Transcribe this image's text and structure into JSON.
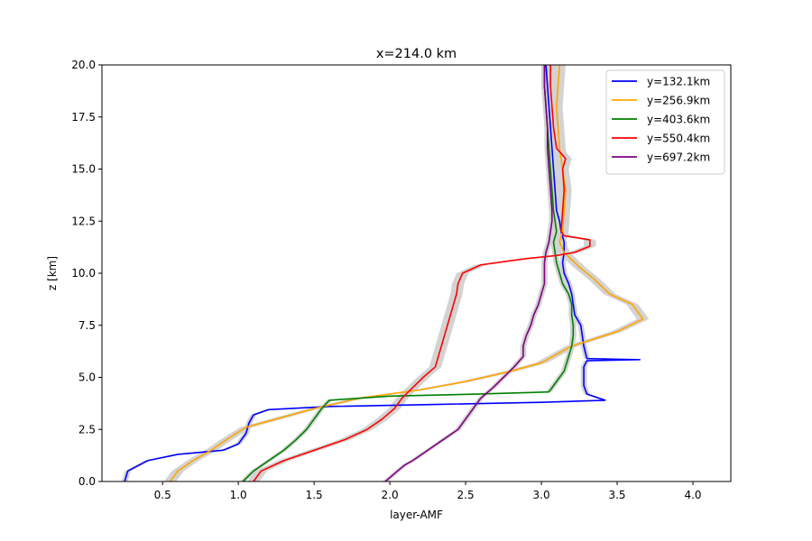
{
  "chart_data": {
    "type": "line",
    "title": "x=214.0 km",
    "xlabel": "layer-AMF",
    "ylabel": "z [km]",
    "xlim": [
      0.1,
      4.25
    ],
    "ylim": [
      0,
      20
    ],
    "xticks": [
      0.5,
      1.0,
      1.5,
      2.0,
      2.5,
      3.0,
      3.5,
      4.0
    ],
    "yticks": [
      0.0,
      2.5,
      5.0,
      7.5,
      10.0,
      12.5,
      15.0,
      17.5,
      20.0
    ],
    "xtick_labels": [
      "0.5",
      "1.0",
      "1.5",
      "2.0",
      "2.5",
      "3.0",
      "3.5",
      "4.0"
    ],
    "ytick_labels": [
      "0.0",
      "2.5",
      "5.0",
      "7.5",
      "10.0",
      "12.5",
      "15.0",
      "17.5",
      "20.0"
    ],
    "grid": false,
    "legend_position": "top-right",
    "uncertainty_color": "#d3d3d3",
    "series": [
      {
        "name": "y=132.1km",
        "color": "#0000ff",
        "points": [
          [
            0.25,
            0
          ],
          [
            0.27,
            0.5
          ],
          [
            0.4,
            1.0
          ],
          [
            0.6,
            1.3
          ],
          [
            0.9,
            1.5
          ],
          [
            1.0,
            1.8
          ],
          [
            1.05,
            2.3
          ],
          [
            1.07,
            2.8
          ],
          [
            1.1,
            3.2
          ],
          [
            1.2,
            3.45
          ],
          [
            1.6,
            3.6
          ],
          [
            2.3,
            3.7
          ],
          [
            3.0,
            3.8
          ],
          [
            3.42,
            3.9
          ],
          [
            3.3,
            4.2
          ],
          [
            3.28,
            4.6
          ],
          [
            3.28,
            5.5
          ],
          [
            3.3,
            5.8
          ],
          [
            3.65,
            5.85
          ],
          [
            3.3,
            5.9
          ],
          [
            3.28,
            6.5
          ],
          [
            3.27,
            7.0
          ],
          [
            3.26,
            7.5
          ],
          [
            3.22,
            8.0
          ],
          [
            3.21,
            8.5
          ],
          [
            3.2,
            9.0
          ],
          [
            3.18,
            9.5
          ],
          [
            3.15,
            10.0
          ],
          [
            3.14,
            10.5
          ],
          [
            3.15,
            11.0
          ],
          [
            3.15,
            11.5
          ],
          [
            3.13,
            12.0
          ],
          [
            3.12,
            12.5
          ],
          [
            3.1,
            13.0
          ],
          [
            3.09,
            14.0
          ],
          [
            3.08,
            15.0
          ],
          [
            3.07,
            16.0
          ],
          [
            3.06,
            17.0
          ],
          [
            3.05,
            18.0
          ],
          [
            3.04,
            19.0
          ],
          [
            3.03,
            20.0
          ]
        ],
        "band": 0.02
      },
      {
        "name": "y=256.9km",
        "color": "#ffa500",
        "points": [
          [
            0.55,
            0
          ],
          [
            0.6,
            0.5
          ],
          [
            0.7,
            1.0
          ],
          [
            0.82,
            1.5
          ],
          [
            0.92,
            2.0
          ],
          [
            1.05,
            2.6
          ],
          [
            1.25,
            3.0
          ],
          [
            1.5,
            3.5
          ],
          [
            1.8,
            4.0
          ],
          [
            2.2,
            4.4
          ],
          [
            2.5,
            4.8
          ],
          [
            2.8,
            5.3
          ],
          [
            3.0,
            5.7
          ],
          [
            3.2,
            6.5
          ],
          [
            3.5,
            7.2
          ],
          [
            3.67,
            7.8
          ],
          [
            3.6,
            8.5
          ],
          [
            3.45,
            9.0
          ],
          [
            3.35,
            9.7
          ],
          [
            3.25,
            10.3
          ],
          [
            3.15,
            11.0
          ],
          [
            3.12,
            11.5
          ],
          [
            3.14,
            12.0
          ],
          [
            3.15,
            13.0
          ],
          [
            3.16,
            14.0
          ],
          [
            3.14,
            15.0
          ],
          [
            3.12,
            16.0
          ],
          [
            3.11,
            17.0
          ],
          [
            3.1,
            18.0
          ],
          [
            3.11,
            19.0
          ],
          [
            3.12,
            20.0
          ]
        ],
        "band": 0.04
      },
      {
        "name": "y=403.6km",
        "color": "#008000",
        "points": [
          [
            1.03,
            0
          ],
          [
            1.1,
            0.5
          ],
          [
            1.2,
            1.0
          ],
          [
            1.3,
            1.5
          ],
          [
            1.38,
            2.0
          ],
          [
            1.45,
            2.5
          ],
          [
            1.5,
            3.0
          ],
          [
            1.55,
            3.5
          ],
          [
            1.6,
            3.9
          ],
          [
            2.0,
            4.1
          ],
          [
            2.6,
            4.2
          ],
          [
            3.05,
            4.3
          ],
          [
            3.1,
            4.8
          ],
          [
            3.15,
            5.3
          ],
          [
            3.18,
            6.0
          ],
          [
            3.2,
            6.5
          ],
          [
            3.21,
            7.0
          ],
          [
            3.21,
            7.5
          ],
          [
            3.2,
            8.0
          ],
          [
            3.2,
            8.5
          ],
          [
            3.18,
            9.0
          ],
          [
            3.14,
            9.5
          ],
          [
            3.12,
            10.0
          ],
          [
            3.1,
            10.5
          ],
          [
            3.09,
            11.0
          ],
          [
            3.08,
            11.5
          ],
          [
            3.1,
            12.0
          ],
          [
            3.08,
            13.0
          ],
          [
            3.07,
            14.0
          ],
          [
            3.06,
            15.0
          ],
          [
            3.05,
            16.0
          ],
          [
            3.04,
            17.0
          ],
          [
            3.03,
            18.0
          ],
          [
            3.02,
            19.0
          ],
          [
            3.02,
            20.0
          ]
        ],
        "band": 0.02
      },
      {
        "name": "y=550.4km",
        "color": "#ff0000",
        "points": [
          [
            1.1,
            0
          ],
          [
            1.15,
            0.5
          ],
          [
            1.3,
            1.0
          ],
          [
            1.5,
            1.5
          ],
          [
            1.7,
            2.0
          ],
          [
            1.85,
            2.5
          ],
          [
            1.95,
            3.0
          ],
          [
            2.03,
            3.5
          ],
          [
            2.08,
            4.0
          ],
          [
            2.15,
            4.5
          ],
          [
            2.22,
            5.0
          ],
          [
            2.3,
            5.5
          ],
          [
            2.32,
            6.0
          ],
          [
            2.34,
            6.5
          ],
          [
            2.36,
            7.0
          ],
          [
            2.38,
            7.5
          ],
          [
            2.4,
            8.0
          ],
          [
            2.42,
            8.5
          ],
          [
            2.44,
            9.0
          ],
          [
            2.45,
            9.5
          ],
          [
            2.48,
            10.0
          ],
          [
            2.6,
            10.4
          ],
          [
            2.9,
            10.7
          ],
          [
            3.1,
            10.85
          ],
          [
            3.22,
            11.0
          ],
          [
            3.32,
            11.3
          ],
          [
            3.32,
            11.6
          ],
          [
            3.15,
            11.8
          ],
          [
            3.13,
            12.0
          ],
          [
            3.14,
            13.0
          ],
          [
            3.15,
            14.0
          ],
          [
            3.14,
            15.0
          ],
          [
            3.16,
            15.5
          ],
          [
            3.1,
            16.0
          ],
          [
            3.08,
            17.0
          ],
          [
            3.07,
            18.0
          ],
          [
            3.06,
            19.0
          ],
          [
            3.06,
            20.0
          ]
        ],
        "band": 0.04
      },
      {
        "name": "y=697.2km",
        "color": "#800080",
        "points": [
          [
            1.97,
            0
          ],
          [
            2.05,
            0.5
          ],
          [
            2.1,
            0.8
          ],
          [
            2.15,
            1.0
          ],
          [
            2.25,
            1.5
          ],
          [
            2.35,
            2.0
          ],
          [
            2.45,
            2.5
          ],
          [
            2.5,
            3.0
          ],
          [
            2.55,
            3.5
          ],
          [
            2.6,
            4.0
          ],
          [
            2.68,
            4.5
          ],
          [
            2.75,
            5.0
          ],
          [
            2.82,
            5.5
          ],
          [
            2.88,
            6.0
          ],
          [
            2.88,
            6.5
          ],
          [
            2.9,
            7.0
          ],
          [
            2.93,
            7.5
          ],
          [
            2.95,
            8.0
          ],
          [
            2.98,
            8.5
          ],
          [
            3.0,
            9.0
          ],
          [
            3.02,
            9.5
          ],
          [
            3.02,
            10.0
          ],
          [
            3.02,
            10.5
          ],
          [
            3.03,
            11.0
          ],
          [
            3.05,
            11.5
          ],
          [
            3.06,
            12.0
          ],
          [
            3.07,
            12.5
          ],
          [
            3.07,
            13.0
          ],
          [
            3.06,
            14.0
          ],
          [
            3.05,
            15.0
          ],
          [
            3.04,
            16.0
          ],
          [
            3.04,
            17.0
          ],
          [
            3.03,
            18.0
          ],
          [
            3.02,
            19.0
          ],
          [
            3.02,
            20.0
          ]
        ],
        "band": 0.02
      }
    ]
  }
}
